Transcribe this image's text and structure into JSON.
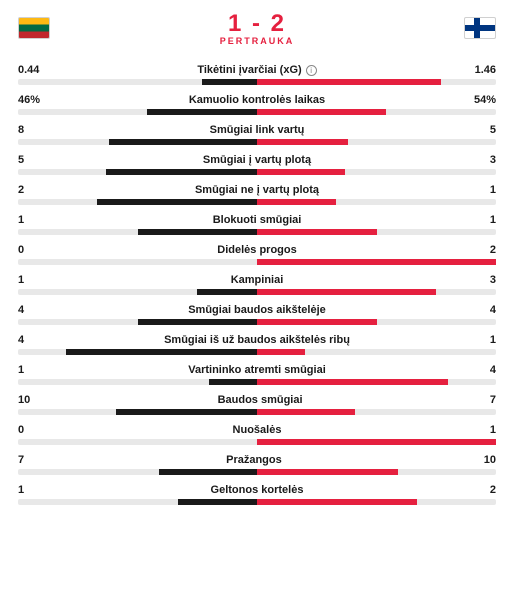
{
  "score": {
    "home": "1",
    "away": "2",
    "sep": " - ",
    "text": "1 - 2"
  },
  "status": "PERTRAUKA",
  "flags": {
    "home": "lt",
    "away": "fi"
  },
  "colors": {
    "home": "#1a1a1a",
    "away": "#e5203f",
    "track": "#e8e8e8"
  },
  "stats": [
    {
      "label": "Tikėtini įvarčiai (xG)",
      "home": "0.44",
      "away": "1.46",
      "home_pct": 23,
      "away_pct": 77,
      "info": true
    },
    {
      "label": "Kamuolio kontrolės laikas",
      "home": "46%",
      "away": "54%",
      "home_pct": 46,
      "away_pct": 54
    },
    {
      "label": "Smūgiai link vartų",
      "home": "8",
      "away": "5",
      "home_pct": 62,
      "away_pct": 38
    },
    {
      "label": "Smūgiai į vartų plotą",
      "home": "5",
      "away": "3",
      "home_pct": 63,
      "away_pct": 37
    },
    {
      "label": "Smūgiai ne į vartų plotą",
      "home": "2",
      "away": "1",
      "home_pct": 67,
      "away_pct": 33
    },
    {
      "label": "Blokuoti smūgiai",
      "home": "1",
      "away": "1",
      "home_pct": 50,
      "away_pct": 50
    },
    {
      "label": "Didelės progos",
      "home": "0",
      "away": "2",
      "home_pct": 0,
      "away_pct": 100
    },
    {
      "label": "Kampiniai",
      "home": "1",
      "away": "3",
      "home_pct": 25,
      "away_pct": 75
    },
    {
      "label": "Smūgiai baudos aikštelėje",
      "home": "4",
      "away": "4",
      "home_pct": 50,
      "away_pct": 50
    },
    {
      "label": "Smūgiai iš už baudos aikštelės ribų",
      "home": "4",
      "away": "1",
      "home_pct": 80,
      "away_pct": 20
    },
    {
      "label": "Vartininko atremti smūgiai",
      "home": "1",
      "away": "4",
      "home_pct": 20,
      "away_pct": 80
    },
    {
      "label": "Baudos smūgiai",
      "home": "10",
      "away": "7",
      "home_pct": 59,
      "away_pct": 41
    },
    {
      "label": "Nuošalės",
      "home": "0",
      "away": "1",
      "home_pct": 0,
      "away_pct": 100
    },
    {
      "label": "Pražangos",
      "home": "7",
      "away": "10",
      "home_pct": 41,
      "away_pct": 59
    },
    {
      "label": "Geltonos kortelės",
      "home": "1",
      "away": "2",
      "home_pct": 33,
      "away_pct": 67
    }
  ]
}
